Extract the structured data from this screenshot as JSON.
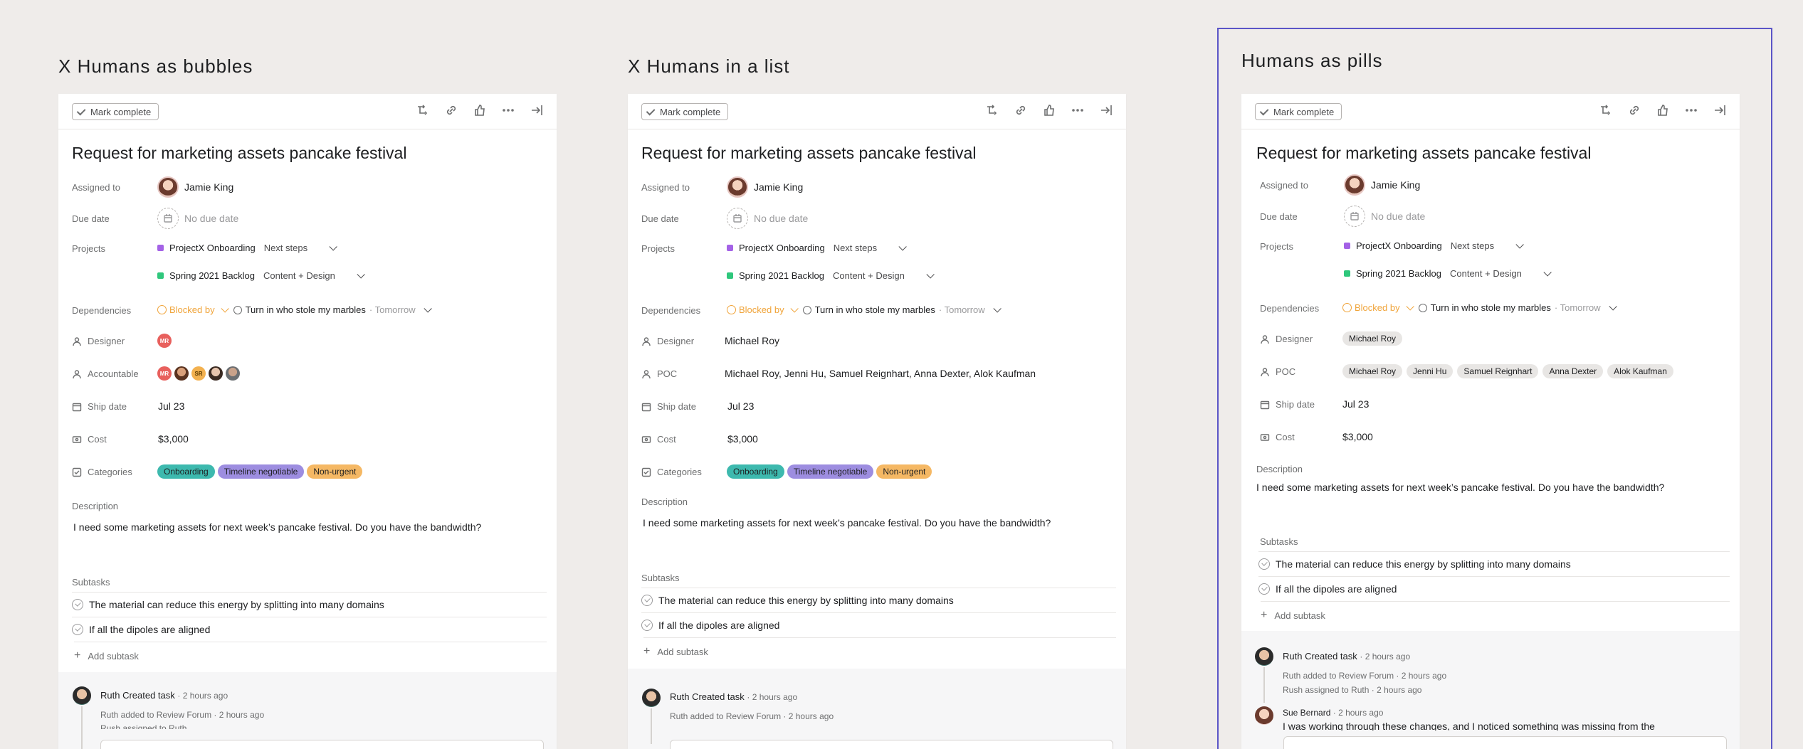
{
  "variants": [
    {
      "title": "X Humans as bubbles"
    },
    {
      "title": "X Humans in a list"
    },
    {
      "title": "Humans as pills"
    }
  ],
  "task": {
    "mark_complete": "Mark complete",
    "title": "Request for marketing assets pancake festival",
    "assigned_label": "Assigned to",
    "assignee": "Jamie King",
    "due_label": "Due date",
    "due_value": "No due date",
    "projects_label": "Projects",
    "project1": {
      "name": "ProjectX Onboarding",
      "section": "Next steps",
      "color": "#a462e6"
    },
    "project2": {
      "name": "Spring 2021 Backlog",
      "section": "Content + Design",
      "color": "#2fc77c"
    },
    "dependencies_label": "Dependencies",
    "blocked_by": "Blocked by",
    "dep_task": "Turn in who stole my marbles",
    "dep_due": "· Tomorrow",
    "designer_label": "Designer",
    "accountable_label": "Accountable",
    "poc_label": "POC",
    "designer_name": "Michael Roy",
    "poc_list": "Michael Roy, Jenni Hu, Samuel Reignhart, Anna Dexter, Alok Kaufman",
    "poc_pills": [
      "Michael Roy",
      "Jenni Hu",
      "Samuel Reignhart",
      "Anna Dexter",
      "Alok Kaufman"
    ],
    "bubble_designer": "MR",
    "bubble_accountable": [
      "MR",
      "SR"
    ],
    "ship_label": "Ship date",
    "ship_value": "Jul 23",
    "cost_label": "Cost",
    "cost_value": "$3,000",
    "categories_label": "Categories",
    "categories": [
      {
        "name": "Onboarding",
        "color": "#3db9ae"
      },
      {
        "name": "Timeline negotiable",
        "color": "#9d8de0"
      },
      {
        "name": "Non-urgent",
        "color": "#f5b864"
      }
    ],
    "description_label": "Description",
    "description": "I need some marketing assets for next week’s pancake festival. Do you have the bandwidth?",
    "subtasks_label": "Subtasks",
    "subtasks": [
      "The material can reduce this energy by splitting into many domains",
      "If all the dipoles are aligned"
    ],
    "add_subtask": "Add subtask"
  },
  "activity": {
    "created": "Ruth Created task",
    "created_time": "· 2 hours ago",
    "added": "Ruth added to Review Forum",
    "added_time": "· 2 hours ago",
    "assigned": "Rush assigned to Ruth",
    "assigned_time": "· 2 hours ago",
    "sue_name": "Sue Bernard",
    "sue_time": "· 2 hours ago",
    "sue_comment": "I was working through these changes, and I noticed something was missing from the"
  },
  "icons": [
    "subtask-icon",
    "link-icon",
    "like-icon",
    "more-icon",
    "close-pane-icon"
  ],
  "colors": {
    "background": "#efecea",
    "selection": "#5b55c7",
    "blocked": "#f0a43a"
  }
}
